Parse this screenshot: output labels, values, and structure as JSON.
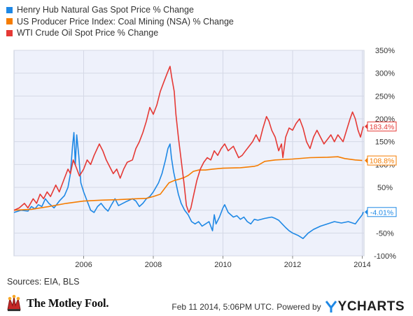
{
  "chart_data": {
    "type": "line",
    "x_unit": "year",
    "xlim": [
      2004.0,
      2014.05
    ],
    "ylim": [
      -100,
      350
    ],
    "y_ticks": [
      -100,
      -50,
      0,
      50,
      100,
      150,
      200,
      250,
      300,
      350
    ],
    "y_tick_labels": [
      "-100%",
      "-50%",
      "0%",
      "50%",
      "100%",
      "150%",
      "200%",
      "250%",
      "300%",
      "350%"
    ],
    "x_ticks": [
      2006,
      2008,
      2010,
      2012,
      2014
    ],
    "x_tick_labels": [
      "2006",
      "2008",
      "2010",
      "2012",
      "2014"
    ],
    "grid": true,
    "legend_position": "top-left",
    "series": [
      {
        "name": "Henry Hub Natural Gas Spot Price % Change",
        "color": "#1e88e5",
        "end_label": "-4.01%",
        "points": [
          [
            2004.0,
            -5
          ],
          [
            2004.2,
            0
          ],
          [
            2004.4,
            -2
          ],
          [
            2004.5,
            8
          ],
          [
            2004.6,
            3
          ],
          [
            2004.7,
            12
          ],
          [
            2004.8,
            8
          ],
          [
            2004.9,
            25
          ],
          [
            2005.0,
            15
          ],
          [
            2005.15,
            5
          ],
          [
            2005.3,
            20
          ],
          [
            2005.45,
            32
          ],
          [
            2005.55,
            50
          ],
          [
            2005.62,
            80
          ],
          [
            2005.68,
            140
          ],
          [
            2005.72,
            170
          ],
          [
            2005.76,
            100
          ],
          [
            2005.8,
            165
          ],
          [
            2005.86,
            120
          ],
          [
            2005.92,
            60
          ],
          [
            2006.0,
            40
          ],
          [
            2006.1,
            20
          ],
          [
            2006.2,
            0
          ],
          [
            2006.3,
            -5
          ],
          [
            2006.4,
            8
          ],
          [
            2006.5,
            15
          ],
          [
            2006.6,
            5
          ],
          [
            2006.7,
            -2
          ],
          [
            2006.8,
            12
          ],
          [
            2006.9,
            25
          ],
          [
            2007.0,
            10
          ],
          [
            2007.2,
            18
          ],
          [
            2007.4,
            25
          ],
          [
            2007.5,
            20
          ],
          [
            2007.6,
            8
          ],
          [
            2007.7,
            15
          ],
          [
            2007.8,
            25
          ],
          [
            2007.9,
            30
          ],
          [
            2008.0,
            40
          ],
          [
            2008.15,
            60
          ],
          [
            2008.25,
            80
          ],
          [
            2008.35,
            110
          ],
          [
            2008.42,
            135
          ],
          [
            2008.48,
            145
          ],
          [
            2008.52,
            115
          ],
          [
            2008.58,
            85
          ],
          [
            2008.65,
            60
          ],
          [
            2008.72,
            35
          ],
          [
            2008.8,
            15
          ],
          [
            2008.9,
            0
          ],
          [
            2009.0,
            -10
          ],
          [
            2009.1,
            -25
          ],
          [
            2009.2,
            -30
          ],
          [
            2009.3,
            -25
          ],
          [
            2009.4,
            -35
          ],
          [
            2009.5,
            -30
          ],
          [
            2009.6,
            -25
          ],
          [
            2009.7,
            -45
          ],
          [
            2009.75,
            -10
          ],
          [
            2009.8,
            -30
          ],
          [
            2009.9,
            -15
          ],
          [
            2010.0,
            5
          ],
          [
            2010.05,
            12
          ],
          [
            2010.15,
            -5
          ],
          [
            2010.3,
            -15
          ],
          [
            2010.4,
            -12
          ],
          [
            2010.5,
            -20
          ],
          [
            2010.6,
            -15
          ],
          [
            2010.7,
            -25
          ],
          [
            2010.8,
            -30
          ],
          [
            2010.9,
            -20
          ],
          [
            2011.0,
            -22
          ],
          [
            2011.2,
            -18
          ],
          [
            2011.4,
            -15
          ],
          [
            2011.5,
            -18
          ],
          [
            2011.6,
            -22
          ],
          [
            2011.7,
            -30
          ],
          [
            2011.8,
            -38
          ],
          [
            2011.9,
            -45
          ],
          [
            2012.0,
            -50
          ],
          [
            2012.15,
            -55
          ],
          [
            2012.3,
            -62
          ],
          [
            2012.45,
            -50
          ],
          [
            2012.6,
            -42
          ],
          [
            2012.8,
            -35
          ],
          [
            2013.0,
            -30
          ],
          [
            2013.2,
            -25
          ],
          [
            2013.4,
            -28
          ],
          [
            2013.6,
            -25
          ],
          [
            2013.8,
            -30
          ],
          [
            2013.9,
            -20
          ],
          [
            2014.0,
            -10
          ],
          [
            2014.03,
            -4.01
          ]
        ]
      },
      {
        "name": "US Producer Price Index: Coal Mining (NSA) % Change",
        "color": "#f57c00",
        "end_label": "108.8%",
        "points": [
          [
            2004.0,
            0
          ],
          [
            2004.5,
            2
          ],
          [
            2005.0,
            8
          ],
          [
            2005.5,
            15
          ],
          [
            2006.0,
            20
          ],
          [
            2006.5,
            22
          ],
          [
            2007.0,
            23
          ],
          [
            2007.5,
            25
          ],
          [
            2007.8,
            26
          ],
          [
            2008.0,
            30
          ],
          [
            2008.2,
            35
          ],
          [
            2008.35,
            50
          ],
          [
            2008.45,
            60
          ],
          [
            2008.6,
            65
          ],
          [
            2008.75,
            68
          ],
          [
            2008.9,
            72
          ],
          [
            2009.0,
            76
          ],
          [
            2009.15,
            85
          ],
          [
            2009.3,
            88
          ],
          [
            2009.5,
            88
          ],
          [
            2009.7,
            90
          ],
          [
            2010.0,
            92
          ],
          [
            2010.5,
            93
          ],
          [
            2010.9,
            96
          ],
          [
            2011.0,
            98
          ],
          [
            2011.2,
            107
          ],
          [
            2011.5,
            110
          ],
          [
            2012.0,
            112
          ],
          [
            2012.5,
            115
          ],
          [
            2013.0,
            116
          ],
          [
            2013.3,
            117
          ],
          [
            2013.5,
            113
          ],
          [
            2013.8,
            110
          ],
          [
            2014.0,
            108.8
          ]
        ]
      },
      {
        "name": "WTI Crude Oil Spot Price % Change",
        "color": "#e53935",
        "end_label": "183.4%",
        "points": [
          [
            2004.0,
            0
          ],
          [
            2004.15,
            5
          ],
          [
            2004.3,
            15
          ],
          [
            2004.4,
            5
          ],
          [
            2004.55,
            25
          ],
          [
            2004.65,
            15
          ],
          [
            2004.75,
            35
          ],
          [
            2004.85,
            25
          ],
          [
            2004.95,
            40
          ],
          [
            2005.05,
            30
          ],
          [
            2005.2,
            55
          ],
          [
            2005.3,
            40
          ],
          [
            2005.45,
            70
          ],
          [
            2005.55,
            90
          ],
          [
            2005.62,
            80
          ],
          [
            2005.7,
            110
          ],
          [
            2005.78,
            95
          ],
          [
            2005.88,
            75
          ],
          [
            2006.0,
            90
          ],
          [
            2006.1,
            110
          ],
          [
            2006.2,
            100
          ],
          [
            2006.3,
            120
          ],
          [
            2006.45,
            145
          ],
          [
            2006.55,
            130
          ],
          [
            2006.65,
            110
          ],
          [
            2006.75,
            95
          ],
          [
            2006.85,
            80
          ],
          [
            2006.95,
            90
          ],
          [
            2007.05,
            70
          ],
          [
            2007.15,
            90
          ],
          [
            2007.25,
            105
          ],
          [
            2007.4,
            110
          ],
          [
            2007.5,
            135
          ],
          [
            2007.6,
            150
          ],
          [
            2007.7,
            170
          ],
          [
            2007.8,
            195
          ],
          [
            2007.9,
            225
          ],
          [
            2008.0,
            210
          ],
          [
            2008.1,
            230
          ],
          [
            2008.2,
            260
          ],
          [
            2008.3,
            280
          ],
          [
            2008.4,
            300
          ],
          [
            2008.48,
            315
          ],
          [
            2008.53,
            290
          ],
          [
            2008.6,
            260
          ],
          [
            2008.65,
            210
          ],
          [
            2008.72,
            160
          ],
          [
            2008.8,
            110
          ],
          [
            2008.88,
            60
          ],
          [
            2008.95,
            10
          ],
          [
            2009.02,
            -5
          ],
          [
            2009.08,
            5
          ],
          [
            2009.15,
            30
          ],
          [
            2009.25,
            65
          ],
          [
            2009.35,
            90
          ],
          [
            2009.45,
            105
          ],
          [
            2009.55,
            115
          ],
          [
            2009.65,
            110
          ],
          [
            2009.75,
            130
          ],
          [
            2009.85,
            120
          ],
          [
            2009.95,
            135
          ],
          [
            2010.05,
            145
          ],
          [
            2010.15,
            130
          ],
          [
            2010.3,
            140
          ],
          [
            2010.45,
            115
          ],
          [
            2010.55,
            120
          ],
          [
            2010.65,
            130
          ],
          [
            2010.75,
            140
          ],
          [
            2010.85,
            150
          ],
          [
            2010.95,
            165
          ],
          [
            2011.05,
            150
          ],
          [
            2011.15,
            180
          ],
          [
            2011.25,
            205
          ],
          [
            2011.32,
            195
          ],
          [
            2011.4,
            175
          ],
          [
            2011.5,
            160
          ],
          [
            2011.6,
            130
          ],
          [
            2011.68,
            145
          ],
          [
            2011.72,
            115
          ],
          [
            2011.8,
            160
          ],
          [
            2011.9,
            180
          ],
          [
            2012.0,
            175
          ],
          [
            2012.1,
            190
          ],
          [
            2012.2,
            200
          ],
          [
            2012.3,
            180
          ],
          [
            2012.4,
            150
          ],
          [
            2012.5,
            135
          ],
          [
            2012.6,
            160
          ],
          [
            2012.7,
            175
          ],
          [
            2012.8,
            160
          ],
          [
            2012.9,
            145
          ],
          [
            2013.0,
            155
          ],
          [
            2013.1,
            165
          ],
          [
            2013.2,
            150
          ],
          [
            2013.3,
            165
          ],
          [
            2013.45,
            150
          ],
          [
            2013.55,
            175
          ],
          [
            2013.65,
            200
          ],
          [
            2013.72,
            215
          ],
          [
            2013.8,
            200
          ],
          [
            2013.88,
            175
          ],
          [
            2013.95,
            160
          ],
          [
            2014.0,
            175
          ],
          [
            2014.03,
            183.4
          ]
        ]
      }
    ]
  },
  "sources": "Sources: EIA, BLS",
  "branding": {
    "fool": "The Motley Fool.",
    "timestamp": "Feb 11 2014, 5:06PM UTC.",
    "powered_by": "Powered by",
    "ycharts": "YCHARTS"
  }
}
